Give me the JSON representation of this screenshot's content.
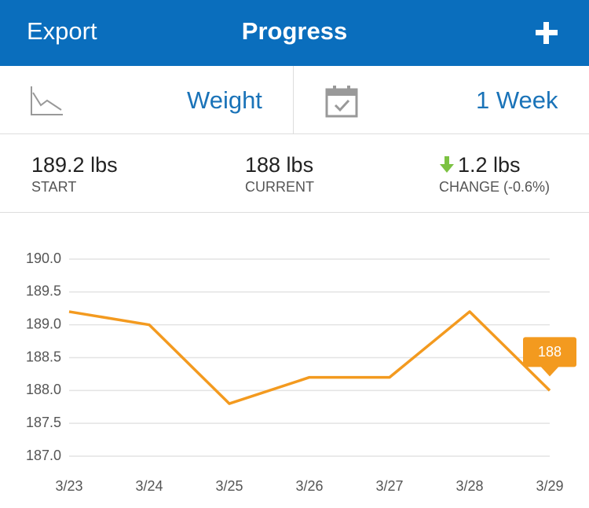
{
  "header": {
    "left": "Export",
    "title": "Progress"
  },
  "selector": {
    "metric": "Weight",
    "period": "1 Week"
  },
  "stats": [
    {
      "value": "189.2 lbs",
      "label": "START"
    },
    {
      "value": "188 lbs",
      "label": "CURRENT"
    },
    {
      "value": "1.2 lbs",
      "label": "CHANGE (-0.6%)"
    }
  ],
  "chart_data": {
    "type": "line",
    "categories": [
      "3/23",
      "3/24",
      "3/25",
      "3/26",
      "3/27",
      "3/28",
      "3/29"
    ],
    "values": [
      189.2,
      189.0,
      187.8,
      188.2,
      188.2,
      189.2,
      188.0
    ],
    "color": "#f39a1f",
    "ylim": [
      187.0,
      190.0
    ],
    "yticks": [
      {
        "value": 187.0,
        "label": "187.0"
      },
      187.5,
      {
        "value": 188.0,
        "label": "188.0"
      },
      188.5,
      {
        "value": 189.0,
        "label": "189.0"
      },
      189.5,
      {
        "value": 190.0,
        "label": "190.0"
      }
    ],
    "grid": true
  }
}
